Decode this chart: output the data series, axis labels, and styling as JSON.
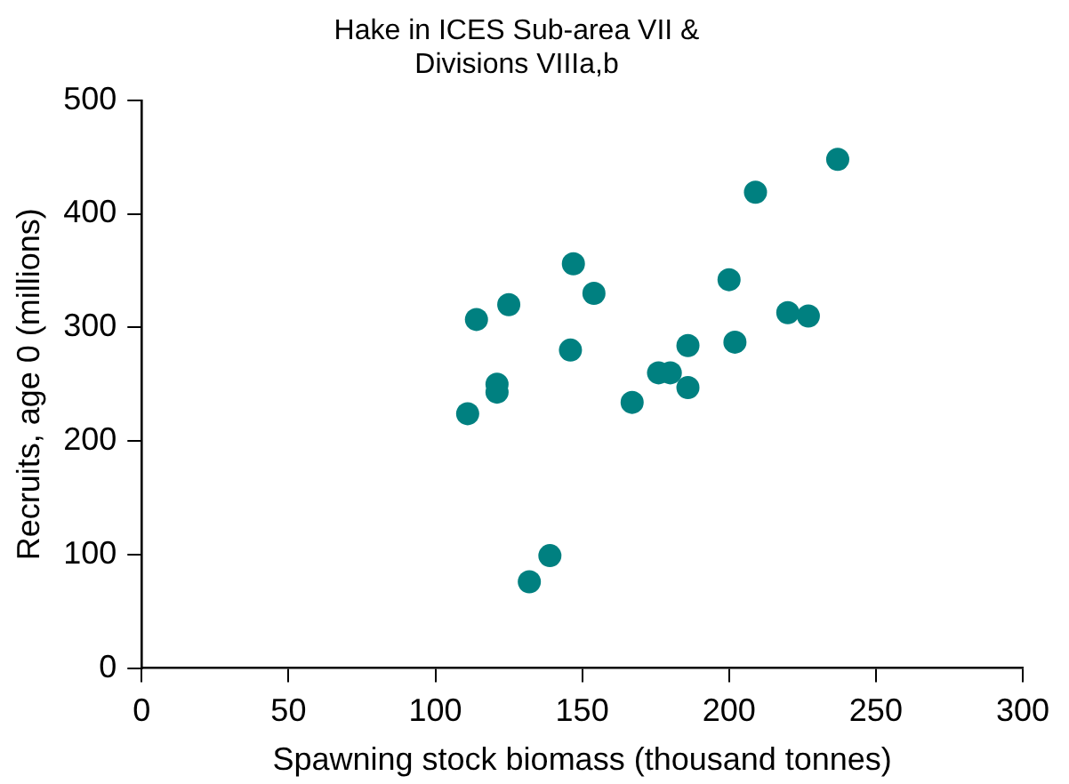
{
  "chart_data": {
    "type": "scatter",
    "title": "Hake in ICES Sub-area VII &\nDivisions VIIIa,b",
    "xlabel": "Spawning stock biomass (thousand tonnes)",
    "ylabel": "Recruits, age 0 (millions)",
    "xlim": [
      0,
      300
    ],
    "xticks": [
      0,
      50,
      100,
      150,
      200,
      250,
      300
    ],
    "ylim": [
      0,
      500
    ],
    "yticks": [
      0,
      100,
      200,
      300,
      400,
      500
    ],
    "grid": false,
    "legend": false,
    "marker": "circle",
    "series": [
      {
        "color": "#008080",
        "x": [
          111,
          114,
          121,
          121,
          125,
          132,
          139,
          146,
          147,
          154,
          167,
          176,
          180,
          186,
          186,
          200,
          202,
          209,
          220,
          227,
          237
        ],
        "values": [
          224,
          307,
          250,
          243,
          320,
          76,
          99,
          280,
          356,
          330,
          234,
          260,
          260,
          284,
          247,
          342,
          287,
          419,
          313,
          310,
          448
        ]
      }
    ]
  }
}
